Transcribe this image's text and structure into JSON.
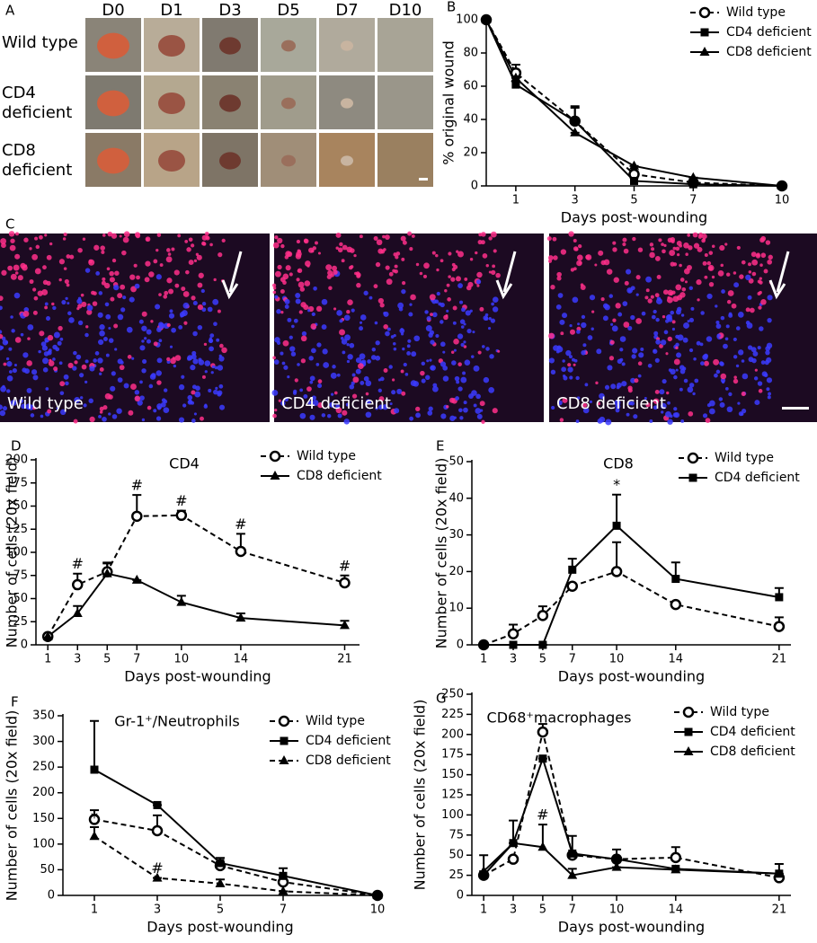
{
  "panel_a": {
    "label": "A",
    "columns": [
      "D0",
      "D1",
      "D3",
      "D5",
      "D7",
      "D10"
    ],
    "rows": [
      "Wild type",
      "CD4 deficient",
      "CD8 deficient"
    ]
  },
  "panel_c": {
    "label": "C",
    "images": [
      "Wild type",
      "CD4 deficient",
      "CD8 deficient"
    ]
  },
  "chart_data": [
    {
      "type": "line",
      "panel": "B",
      "ylabel": "% original wound",
      "xlabel": "Days post-wounding",
      "x": [
        0,
        1,
        3,
        5,
        7,
        10
      ],
      "xlim": [
        0,
        10
      ],
      "xticks": [
        1,
        3,
        5,
        7,
        10
      ],
      "ylim": [
        0,
        100
      ],
      "yticks": [
        0,
        20,
        40,
        60,
        80,
        100
      ],
      "series": [
        {
          "name": "Wild type",
          "color": "#000000",
          "marker": "circle-open",
          "linestyle": "dashed",
          "values": [
            100,
            68,
            39,
            7,
            2,
            0
          ],
          "errors": [
            0,
            5,
            9,
            2,
            0,
            0
          ]
        },
        {
          "name": "CD4 deficient",
          "color": "#000000",
          "marker": "square",
          "linestyle": "solid",
          "values": [
            100,
            61,
            39,
            3,
            1,
            0
          ],
          "errors": [
            0,
            2,
            8,
            2,
            1,
            0
          ]
        },
        {
          "name": "CD8 deficient",
          "color": "#000000",
          "marker": "triangle",
          "linestyle": "solid",
          "values": [
            100,
            65,
            32,
            12,
            5,
            0
          ],
          "errors": [
            0,
            0,
            0,
            0,
            0,
            0
          ]
        }
      ]
    },
    {
      "type": "line",
      "panel": "D",
      "title": "CD4",
      "ylabel": "Number of cells (20x field)",
      "xlabel": "Days post-wounding",
      "x": [
        1,
        3,
        5,
        7,
        10,
        14,
        21
      ],
      "xlim": [
        0.2,
        22
      ],
      "xticks": [
        1,
        3,
        5,
        7,
        10,
        14,
        21
      ],
      "ylim": [
        0,
        200
      ],
      "yticks": [
        0,
        25,
        50,
        75,
        100,
        125,
        150,
        175,
        200
      ],
      "series": [
        {
          "name": "Wild type",
          "color": "#000000",
          "marker": "circle-open",
          "linestyle": "dashed",
          "values": [
            9,
            65,
            79,
            139,
            140,
            101,
            67
          ],
          "errors": [
            0,
            12,
            9,
            23,
            5,
            19,
            8
          ]
        },
        {
          "name": "CD8 deficient",
          "color": "#000000",
          "marker": "triangle",
          "linestyle": "solid",
          "values": [
            9,
            34,
            77,
            70,
            46,
            29,
            21
          ],
          "errors": [
            0,
            8,
            12,
            0,
            7,
            5,
            5
          ]
        }
      ],
      "annotations": [
        {
          "text": "#",
          "x": 3
        },
        {
          "text": "#",
          "x": 7
        },
        {
          "text": "#",
          "x": 10
        },
        {
          "text": "#",
          "x": 14
        },
        {
          "text": "#",
          "x": 21
        }
      ]
    },
    {
      "type": "line",
      "panel": "E",
      "title": "CD8",
      "ylabel": "Number of cells (20x field)",
      "xlabel": "Days post-wounding",
      "x": [
        1,
        3,
        5,
        7,
        10,
        14,
        21
      ],
      "xlim": [
        0.2,
        21.8
      ],
      "xticks": [
        1,
        3,
        5,
        7,
        10,
        14,
        21
      ],
      "ylim": [
        0,
        50
      ],
      "yticks": [
        0,
        10,
        20,
        30,
        40,
        50
      ],
      "series": [
        {
          "name": "Wild type",
          "color": "#000000",
          "marker": "circle-open",
          "linestyle": "dashed",
          "values": [
            0,
            3,
            8,
            16,
            20,
            11,
            5
          ],
          "errors": [
            0,
            2.5,
            2.5,
            0,
            8,
            0,
            2.5
          ]
        },
        {
          "name": "CD4 deficient",
          "color": "#000000",
          "marker": "square",
          "linestyle": "solid",
          "values": [
            0,
            0,
            0,
            20.5,
            32.5,
            18,
            13
          ],
          "errors": [
            0,
            0,
            0,
            3,
            8.5,
            4.5,
            2.5
          ]
        }
      ],
      "annotations": [
        {
          "text": "*",
          "x": 10
        }
      ]
    },
    {
      "type": "line",
      "panel": "F",
      "title": "Gr-1⁺/Neutrophils",
      "ylabel": "Number of cells (20x field)",
      "xlabel": "Days post-wounding",
      "x": [
        1,
        3,
        5,
        7,
        10
      ],
      "xlim": [
        0,
        10
      ],
      "xticks": [
        1,
        3,
        5,
        7,
        10
      ],
      "ylim": [
        0,
        350
      ],
      "yticks": [
        0,
        50,
        100,
        150,
        200,
        250,
        300,
        350
      ],
      "series": [
        {
          "name": "Wild type",
          "color": "#000000",
          "marker": "circle-open",
          "linestyle": "dashed",
          "values": [
            148,
            126,
            58,
            26,
            0
          ],
          "errors": [
            18,
            30,
            7,
            10,
            0
          ]
        },
        {
          "name": "CD4 deficient",
          "color": "#000000",
          "marker": "square",
          "linestyle": "solid",
          "values": [
            245,
            176,
            63,
            38,
            0
          ],
          "errors": [
            95,
            0,
            10,
            15,
            0
          ]
        },
        {
          "name": "CD8 deficient",
          "color": "#000000",
          "marker": "triangle",
          "linestyle": "dashed",
          "values": [
            115,
            34,
            23,
            8,
            0
          ],
          "errors": [
            18,
            0,
            8,
            0,
            0
          ]
        }
      ],
      "annotations": [
        {
          "text": "*",
          "x": 1
        },
        {
          "text": "#",
          "x": 3
        }
      ]
    },
    {
      "type": "line",
      "panel": "G",
      "title": "CD68⁺macrophages",
      "ylabel": "Number of cells (20x field)",
      "xlabel": "Days post-wounding",
      "x": [
        1,
        3,
        5,
        7,
        10,
        14,
        21
      ],
      "xlim": [
        0.2,
        21.8
      ],
      "xticks": [
        1,
        3,
        5,
        7,
        10,
        14,
        21
      ],
      "ylim": [
        0,
        250
      ],
      "yticks": [
        0,
        25,
        50,
        75,
        100,
        125,
        150,
        175,
        200,
        225,
        250
      ],
      "series": [
        {
          "name": "Wild type",
          "color": "#000000",
          "marker": "circle-open",
          "linestyle": "dashed",
          "values": [
            25,
            45,
            203,
            50,
            45,
            47,
            22
          ],
          "errors": [
            0,
            0,
            10,
            0,
            12,
            13,
            0
          ]
        },
        {
          "name": "CD4 deficient",
          "color": "#000000",
          "marker": "square",
          "linestyle": "solid",
          "values": [
            25,
            65,
            170,
            52,
            45,
            33,
            27
          ],
          "errors": [
            25,
            28,
            0,
            22,
            0,
            0,
            12
          ]
        },
        {
          "name": "CD8 deficient",
          "color": "#000000",
          "marker": "triangle",
          "linestyle": "solid",
          "values": [
            30,
            65,
            60,
            25,
            35,
            32,
            27
          ],
          "errors": [
            0,
            0,
            28,
            8,
            0,
            0,
            0
          ]
        }
      ],
      "annotations": [
        {
          "text": "#",
          "x": 5
        }
      ]
    }
  ]
}
